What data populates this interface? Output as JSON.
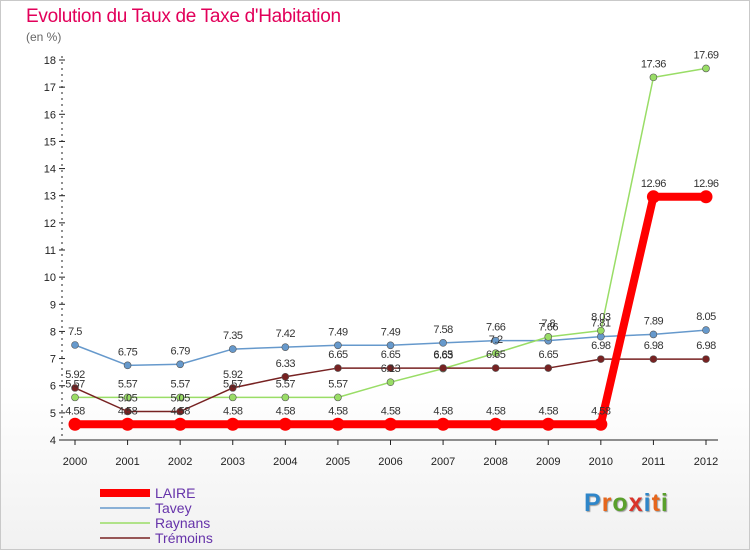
{
  "title": "Evolution du Taux de Taxe d'Habitation",
  "unit_label": "(en %)",
  "logo": {
    "letters": [
      "P",
      "r",
      "o",
      "x",
      "i",
      "t",
      "i"
    ],
    "colors": [
      "#2f86c9",
      "#e6661c",
      "#5aa02c",
      "#d9342b",
      "#2f86c9",
      "#e6661c",
      "#5aa02c"
    ]
  },
  "chart_data": {
    "type": "line",
    "title": "Evolution du Taux de Taxe d'Habitation",
    "ylabel": "(en %)",
    "xlabel": "",
    "x": [
      "2000",
      "2001",
      "2002",
      "2003",
      "2004",
      "2005",
      "2006",
      "2007",
      "2008",
      "2009",
      "2010",
      "2011",
      "2012"
    ],
    "ylim": [
      4,
      18
    ],
    "yticks": [
      4,
      5,
      6,
      7,
      8,
      9,
      10,
      11,
      12,
      13,
      14,
      15,
      16,
      17,
      18
    ],
    "grid": false,
    "legend_position": "bottom-left",
    "series": [
      {
        "name": "LAIRE",
        "color": "#ff0000",
        "values": [
          4.58,
          4.58,
          4.58,
          4.58,
          4.58,
          4.58,
          4.58,
          4.58,
          4.58,
          4.58,
          4.58,
          12.96,
          12.96
        ]
      },
      {
        "name": "Tavey",
        "color": "#6699cc",
        "values": [
          7.5,
          6.75,
          6.79,
          7.35,
          7.42,
          7.49,
          7.49,
          7.58,
          7.66,
          7.66,
          7.81,
          7.89,
          8.05
        ]
      },
      {
        "name": "Raynans",
        "color": "#99dd66",
        "values": [
          5.57,
          5.57,
          5.57,
          5.57,
          5.57,
          5.57,
          6.13,
          6.63,
          7.2,
          7.8,
          8.03,
          17.36,
          17.69
        ]
      },
      {
        "name": "Trémoins",
        "color": "#772222",
        "values": [
          5.92,
          5.05,
          5.05,
          5.92,
          6.33,
          6.65,
          6.65,
          6.65,
          6.65,
          6.65,
          6.98,
          6.98,
          6.98
        ]
      }
    ],
    "data_labels": [
      [
        "4.58",
        "4.58",
        "4.58",
        "4.58",
        "4.58",
        "4.58",
        "4.58",
        "4.58",
        "4.58",
        "4.58",
        "4.58",
        "12.96",
        "12.96"
      ],
      [
        "7.5",
        "6.75",
        "6.79",
        "7.35",
        "7.42",
        "7.49",
        "7.49",
        "7.58",
        "7.66",
        "7.66",
        "7.81",
        "7.89",
        "8.05"
      ],
      [
        "5.57",
        "5.57",
        "5.57",
        "5.57",
        "5.57",
        "5.57",
        "6.13",
        "6.63",
        "7.2",
        "7.8",
        "8.03",
        "17.36",
        "17.69"
      ],
      [
        "5.92",
        "5.05",
        "5.05",
        "5.92",
        "6.33",
        "6.65",
        "6.65",
        "6.65",
        "6.65",
        "6.65",
        "6.98",
        "6.98",
        "6.98"
      ]
    ]
  }
}
